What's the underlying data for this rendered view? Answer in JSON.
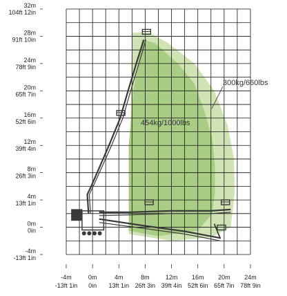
{
  "chart_data": {
    "type": "reach-diagram",
    "x_ticks": [
      {
        "metric": "-4m",
        "imperial": "-13ft 1in"
      },
      {
        "metric": "0m",
        "imperial": "0in"
      },
      {
        "metric": "4m",
        "imperial": "13ft 1in"
      },
      {
        "metric": "8m",
        "imperial": "26ft 3in"
      },
      {
        "metric": "12m",
        "imperial": "39ft 4in"
      },
      {
        "metric": "16m",
        "imperial": "52ft 6in"
      },
      {
        "metric": "20m",
        "imperial": "65ft 7in"
      },
      {
        "metric": "24m",
        "imperial": "78ft 9in"
      }
    ],
    "y_ticks": [
      {
        "metric": "32m",
        "imperial": "104ft 12in"
      },
      {
        "metric": "28m",
        "imperial": "91ft 10in"
      },
      {
        "metric": "24m",
        "imperial": "78ft 9in"
      },
      {
        "metric": "20m",
        "imperial": "65ft 7in"
      },
      {
        "metric": "16m",
        "imperial": "52ft 6in"
      },
      {
        "metric": "12m",
        "imperial": "39ft 4in"
      },
      {
        "metric": "8m",
        "imperial": "26ft 3in"
      },
      {
        "metric": "4m",
        "imperial": "13ft 1in"
      },
      {
        "metric": "0m",
        "imperial": "0in"
      },
      {
        "metric": "-4m",
        "imperial": "-13ft 1in"
      }
    ],
    "xlim": [
      -4,
      24
    ],
    "ylim": [
      -4,
      32
    ],
    "grid": true,
    "zones": [
      {
        "label": "300kg/660lbs",
        "color": "#cfe3b4",
        "outline": [
          [
            5.5,
            -1
          ],
          [
            6,
            28.5
          ],
          [
            8.5,
            28.6
          ],
          [
            11.5,
            27
          ],
          [
            15.5,
            24
          ],
          [
            18.5,
            20
          ],
          [
            20.5,
            15
          ],
          [
            21.5,
            10
          ],
          [
            21.6,
            5
          ],
          [
            21,
            0
          ],
          [
            18,
            -1.5
          ],
          [
            12,
            -2
          ],
          [
            5.5,
            -1
          ]
        ]
      },
      {
        "label": "454kg/1000lbs",
        "color": "#a9cd84",
        "outline": [
          [
            5.5,
            -0.5
          ],
          [
            5.5,
            12
          ],
          [
            6.2,
            20
          ],
          [
            7.5,
            27.5
          ],
          [
            9.5,
            27
          ],
          [
            13,
            24
          ],
          [
            15.5,
            21
          ],
          [
            17,
            17
          ],
          [
            18.2,
            13
          ],
          [
            18.6,
            9
          ],
          [
            18.6,
            5
          ],
          [
            18.2,
            2
          ],
          [
            16,
            -0.5
          ],
          [
            10,
            -1.3
          ],
          [
            5.5,
            -0.5
          ]
        ]
      }
    ],
    "machine_color": "#3a3a3a",
    "zone_label_color": "#333333"
  }
}
